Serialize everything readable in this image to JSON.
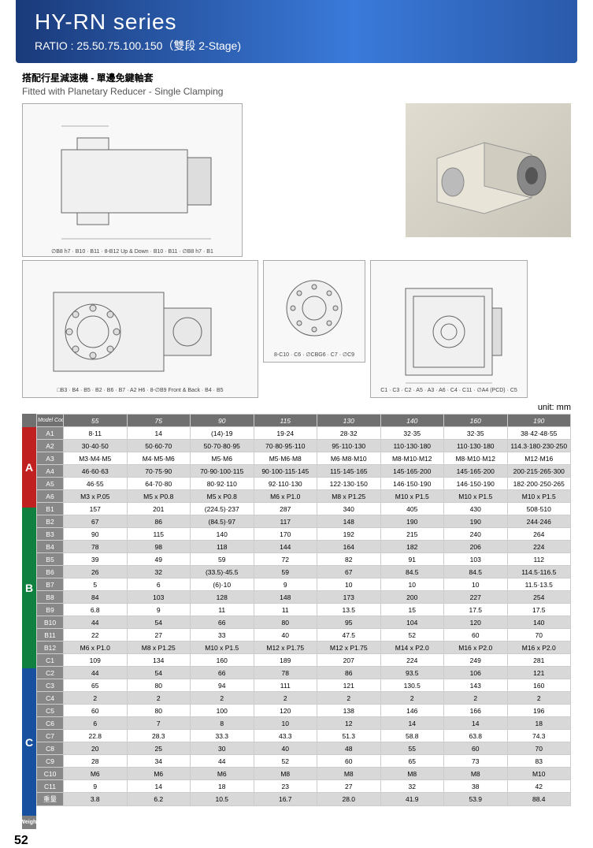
{
  "header": {
    "title": "HY-RN series",
    "ratio": "RATIO : 25.50.75.100.150（雙段 2-Stage)"
  },
  "subtitle": {
    "cn": "搭配行星減速機 - 單邊免鍵軸套",
    "en": "Fitted with Planetary Reducer - Single Clamping"
  },
  "diagram_labels": {
    "top": "∅B8 h7 · B10 · B11 · 8-B12 Up & Down · B10 · B11 · ∅B8 h7 · B1",
    "b1": "□B3 · B4 · B5 · B2 · B6 · B7 · A2 H6 · 8-∅B9 Front & Back · B4 · B5",
    "b2": "8-C10 · C6 · ∅CBG6 · C7 · ∅C9",
    "b3": "C1 · C3 · C2 · A5 · A3 · A6 · C4 · C11 · ∅A4 (PCD) · C5"
  },
  "unit": "unit: mm",
  "table": {
    "header": [
      "Model Code",
      "55",
      "75",
      "90",
      "115",
      "130",
      "140",
      "160",
      "190"
    ],
    "sections": [
      {
        "label": "A",
        "color": "#c02020",
        "rows": [
          {
            "code": "A1",
            "shaded": false,
            "cells": [
              "8·11",
              "14",
              "(14)·19",
              "19·24",
              "28·32",
              "32·35",
              "32·35",
              "38·42·48·55"
            ]
          },
          {
            "code": "A2",
            "shaded": true,
            "cells": [
              "30·40·50",
              "50·60·70",
              "50·70·80·95",
              "70·80·95·110",
              "95·110·130",
              "110·130·180",
              "110·130·180",
              "114.3·180·230·250"
            ]
          },
          {
            "code": "A3",
            "shaded": false,
            "cells": [
              "M3·M4·M5",
              "M4·M5·M6",
              "M5·M6",
              "M5·M6·M8",
              "M6·M8·M10",
              "M8·M10·M12",
              "M8·M10·M12",
              "M12·M16"
            ]
          },
          {
            "code": "A4",
            "shaded": true,
            "cells": [
              "46·60·63",
              "70·75·90",
              "70·90·100·115",
              "90·100·115·145",
              "115·145·165",
              "145·165·200",
              "145·165·200",
              "200·215·265·300"
            ]
          },
          {
            "code": "A5",
            "shaded": false,
            "cells": [
              "46·55",
              "64·70·80",
              "80·92·110",
              "92·110·130",
              "122·130·150",
              "146·150·190",
              "146·150·190",
              "182·200·250·265"
            ]
          },
          {
            "code": "A6",
            "shaded": true,
            "cells": [
              "M3 x P.05",
              "M5 x P0.8",
              "M5 x P0.8",
              "M6 x P1.0",
              "M8 x P1.25",
              "M10 x P1.5",
              "M10 x P1.5",
              "M10 x P1.5"
            ]
          }
        ]
      },
      {
        "label": "B",
        "color": "#108040",
        "rows": [
          {
            "code": "B1",
            "shaded": false,
            "cells": [
              "157",
              "201",
              "(224.5)·237",
              "287",
              "340",
              "405",
              "430",
              "508·510"
            ]
          },
          {
            "code": "B2",
            "shaded": true,
            "cells": [
              "67",
              "86",
              "(84.5)·97",
              "117",
              "148",
              "190",
              "190",
              "244·246"
            ]
          },
          {
            "code": "B3",
            "shaded": false,
            "cells": [
              "90",
              "115",
              "140",
              "170",
              "192",
              "215",
              "240",
              "264"
            ]
          },
          {
            "code": "B4",
            "shaded": true,
            "cells": [
              "78",
              "98",
              "118",
              "144",
              "164",
              "182",
              "206",
              "224"
            ]
          },
          {
            "code": "B5",
            "shaded": false,
            "cells": [
              "39",
              "49",
              "59",
              "72",
              "82",
              "91",
              "103",
              "112"
            ]
          },
          {
            "code": "B6",
            "shaded": true,
            "cells": [
              "26",
              "32",
              "(33.5)·45.5",
              "59",
              "67",
              "84.5",
              "84.5",
              "114.5·116.5"
            ]
          },
          {
            "code": "B7",
            "shaded": false,
            "cells": [
              "5",
              "6",
              "(6)·10",
              "9",
              "10",
              "10",
              "10",
              "11.5·13.5"
            ]
          },
          {
            "code": "B8",
            "shaded": true,
            "cells": [
              "84",
              "103",
              "128",
              "148",
              "173",
              "200",
              "227",
              "254"
            ]
          },
          {
            "code": "B9",
            "shaded": false,
            "cells": [
              "6.8",
              "9",
              "11",
              "11",
              "13.5",
              "15",
              "17.5",
              "17.5"
            ]
          },
          {
            "code": "B10",
            "shaded": true,
            "cells": [
              "44",
              "54",
              "66",
              "80",
              "95",
              "104",
              "120",
              "140"
            ]
          },
          {
            "code": "B11",
            "shaded": false,
            "cells": [
              "22",
              "27",
              "33",
              "40",
              "47.5",
              "52",
              "60",
              "70"
            ]
          },
          {
            "code": "B12",
            "shaded": true,
            "cells": [
              "M6 x P1.0",
              "M8 x P1.25",
              "M10 x P1.5",
              "M12 x P1.75",
              "M12 x P1.75",
              "M14 x P2.0",
              "M16 x P2.0",
              "M16 x P2.0"
            ]
          }
        ]
      },
      {
        "label": "C",
        "color": "#1850a0",
        "rows": [
          {
            "code": "C1",
            "shaded": false,
            "cells": [
              "109",
              "134",
              "160",
              "189",
              "207",
              "224",
              "249",
              "281"
            ]
          },
          {
            "code": "C2",
            "shaded": true,
            "cells": [
              "44",
              "54",
              "66",
              "78",
              "86",
              "93.5",
              "106",
              "121"
            ]
          },
          {
            "code": "C3",
            "shaded": false,
            "cells": [
              "65",
              "80",
              "94",
              "111",
              "121",
              "130.5",
              "143",
              "160"
            ]
          },
          {
            "code": "C4",
            "shaded": true,
            "cells": [
              "2",
              "2",
              "2",
              "2",
              "2",
              "2",
              "2",
              "2"
            ]
          },
          {
            "code": "C5",
            "shaded": false,
            "cells": [
              "60",
              "80",
              "100",
              "120",
              "138",
              "146",
              "166",
              "196"
            ]
          },
          {
            "code": "C6",
            "shaded": true,
            "cells": [
              "6",
              "7",
              "8",
              "10",
              "12",
              "14",
              "14",
              "18"
            ]
          },
          {
            "code": "C7",
            "shaded": false,
            "cells": [
              "22.8",
              "28.3",
              "33.3",
              "43.3",
              "51.3",
              "58.8",
              "63.8",
              "74.3"
            ]
          },
          {
            "code": "C8",
            "shaded": true,
            "cells": [
              "20",
              "25",
              "30",
              "40",
              "48",
              "55",
              "60",
              "70"
            ]
          },
          {
            "code": "C9",
            "shaded": false,
            "cells": [
              "28",
              "34",
              "44",
              "52",
              "60",
              "65",
              "73",
              "83"
            ]
          },
          {
            "code": "C10",
            "shaded": true,
            "cells": [
              "M6",
              "M6",
              "M6",
              "M8",
              "M8",
              "M8",
              "M8",
              "M10"
            ]
          },
          {
            "code": "C11",
            "shaded": false,
            "cells": [
              "9",
              "14",
              "18",
              "23",
              "27",
              "32",
              "38",
              "42"
            ]
          }
        ]
      },
      {
        "label": "Weight",
        "color": "#808080",
        "rows": [
          {
            "code": "重量",
            "shaded": true,
            "cells": [
              "3.8",
              "6.2",
              "10.5",
              "16.7",
              "28.0",
              "41.9",
              "53.9",
              "88.4"
            ]
          }
        ]
      }
    ]
  },
  "page_number": "52"
}
